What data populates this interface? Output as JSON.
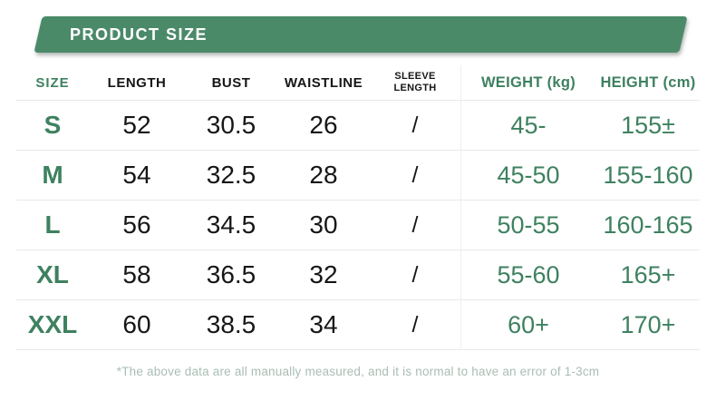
{
  "banner": {
    "title": "PRODUCT SIZE"
  },
  "colors": {
    "banner_green": "#4b8a69",
    "accent_green": "#3e8160",
    "text_black": "#161616",
    "row_line": "#e8e8e8",
    "column_divider": "#efefef",
    "note_color": "#a9beb4"
  },
  "chart_data": {
    "type": "table",
    "title": "PRODUCT SIZE",
    "columns": [
      "SIZE",
      "LENGTH",
      "BUST",
      "WAISTLINE",
      "SLEEVE LENGTH",
      "WEIGHT (kg)",
      "HEIGHT (cm)"
    ],
    "rows": [
      [
        "S",
        "52",
        "30.5",
        "26",
        "/",
        "45-",
        "155±"
      ],
      [
        "M",
        "54",
        "32.5",
        "28",
        "/",
        "45-50",
        "155-160"
      ],
      [
        "L",
        "56",
        "34.5",
        "30",
        "/",
        "50-55",
        "160-165"
      ],
      [
        "XL",
        "58",
        "36.5",
        "32",
        "/",
        "55-60",
        "165+"
      ],
      [
        "XXL",
        "60",
        "38.5",
        "34",
        "/",
        "60+",
        "170+"
      ]
    ],
    "footnote": "*The above data are all manually measured, and it is normal to have an error of 1-3cm",
    "layout": {
      "grid": "off",
      "accent_columns_green": [
        0,
        5,
        6
      ],
      "column_divider_before": 5
    }
  }
}
